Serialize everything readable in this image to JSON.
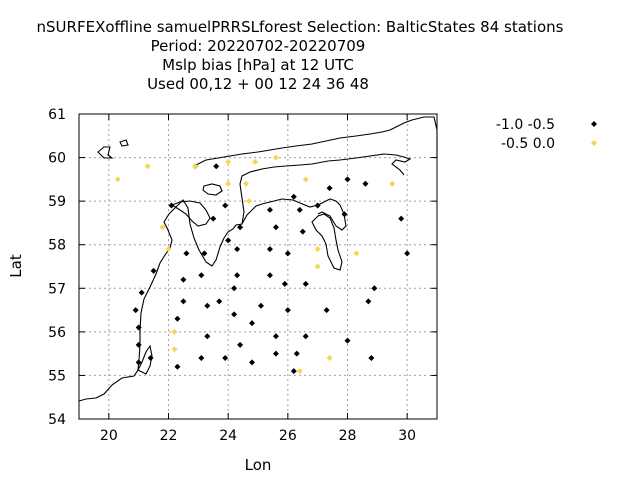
{
  "chart_data": {
    "type": "scatter",
    "title_lines": [
      "nSURFEXoffline samuelPRRSLforest   Selection: BalticStates     84 stations",
      "Period: 20220702-20220709",
      "Mslp bias [hPa] at  12 UTC",
      "Used  00,12 + 00 12 24 36 48"
    ],
    "xlabel": "Lon",
    "ylabel": "Lat",
    "xlim": [
      19,
      31
    ],
    "ylim": [
      54,
      61
    ],
    "xticks": [
      "20",
      "22",
      "24",
      "26",
      "28",
      "30"
    ],
    "yticks": [
      "54",
      "55",
      "56",
      "57",
      "58",
      "59",
      "60",
      "61"
    ],
    "grid": true,
    "legend_position": "top-right",
    "series": [
      {
        "name": "-1.0 -0.5",
        "color": "#000000",
        "points": [
          [
            22.9,
            59.8
          ],
          [
            23.6,
            59.8
          ],
          [
            26.2,
            59.1
          ],
          [
            27.4,
            59.3
          ],
          [
            28.0,
            59.5
          ],
          [
            28.6,
            59.4
          ],
          [
            22.1,
            58.9
          ],
          [
            23.9,
            58.9
          ],
          [
            25.4,
            58.8
          ],
          [
            26.4,
            58.8
          ],
          [
            27.0,
            58.9
          ],
          [
            27.9,
            58.7
          ],
          [
            23.5,
            58.6
          ],
          [
            24.4,
            58.4
          ],
          [
            25.6,
            58.4
          ],
          [
            26.5,
            58.3
          ],
          [
            24.0,
            58.1
          ],
          [
            24.3,
            57.9
          ],
          [
            25.4,
            57.9
          ],
          [
            26.0,
            57.8
          ],
          [
            22.6,
            57.8
          ],
          [
            23.2,
            57.8
          ],
          [
            21.5,
            57.4
          ],
          [
            23.1,
            57.3
          ],
          [
            24.3,
            57.3
          ],
          [
            25.4,
            57.3
          ],
          [
            26.6,
            57.1
          ],
          [
            25.9,
            57.1
          ],
          [
            22.5,
            57.2
          ],
          [
            29.8,
            58.6
          ],
          [
            30.0,
            57.8
          ],
          [
            28.9,
            57.0
          ],
          [
            28.7,
            56.7
          ],
          [
            21.1,
            56.9
          ],
          [
            22.5,
            56.7
          ],
          [
            23.3,
            56.6
          ],
          [
            23.7,
            56.7
          ],
          [
            24.2,
            57.0
          ],
          [
            25.1,
            56.6
          ],
          [
            26.0,
            56.5
          ],
          [
            27.3,
            56.5
          ],
          [
            20.9,
            56.5
          ],
          [
            24.2,
            56.4
          ],
          [
            22.3,
            56.3
          ],
          [
            24.8,
            56.2
          ],
          [
            21.0,
            56.1
          ],
          [
            23.3,
            55.9
          ],
          [
            25.6,
            55.9
          ],
          [
            26.6,
            55.9
          ],
          [
            21.0,
            55.7
          ],
          [
            24.4,
            55.7
          ],
          [
            28.0,
            55.8
          ],
          [
            23.1,
            55.4
          ],
          [
            23.9,
            55.4
          ],
          [
            25.6,
            55.5
          ],
          [
            26.3,
            55.5
          ],
          [
            28.8,
            55.4
          ],
          [
            21.0,
            55.3
          ],
          [
            21.4,
            55.4
          ],
          [
            22.3,
            55.2
          ],
          [
            24.8,
            55.3
          ],
          [
            26.2,
            55.1
          ]
        ]
      },
      {
        "name": "-0.5 0.0",
        "color": "#f0d850",
        "points": [
          [
            20.3,
            59.5
          ],
          [
            21.3,
            59.8
          ],
          [
            22.9,
            59.8
          ],
          [
            24.0,
            59.9
          ],
          [
            24.9,
            59.9
          ],
          [
            25.6,
            60.0
          ],
          [
            24.0,
            59.4
          ],
          [
            24.6,
            59.4
          ],
          [
            26.6,
            59.5
          ],
          [
            29.5,
            59.4
          ],
          [
            24.7,
            59.0
          ],
          [
            21.8,
            58.4
          ],
          [
            22.0,
            57.9
          ],
          [
            27.0,
            57.9
          ],
          [
            28.3,
            57.8
          ],
          [
            27.0,
            57.5
          ],
          [
            22.2,
            56.0
          ],
          [
            22.2,
            55.6
          ],
          [
            27.4,
            55.4
          ],
          [
            26.4,
            55.1
          ]
        ]
      }
    ]
  }
}
